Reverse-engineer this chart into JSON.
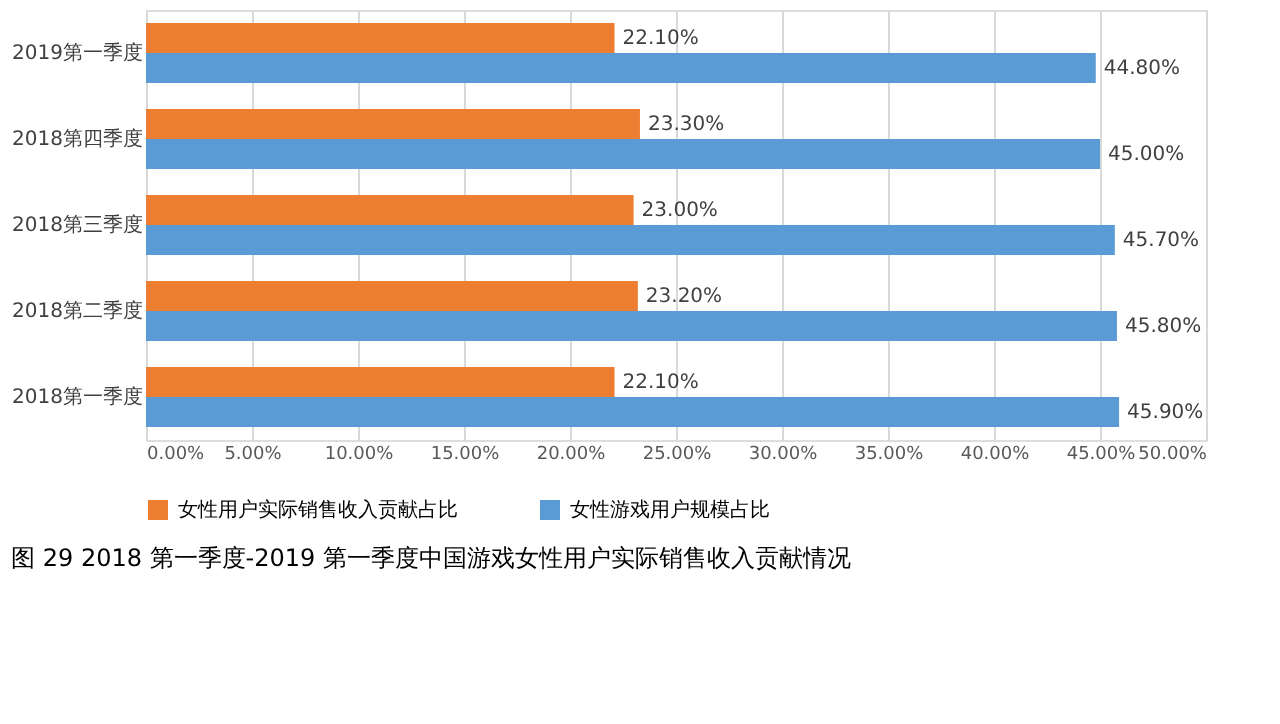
{
  "chart_data": {
    "type": "bar",
    "orientation": "horizontal",
    "categories": [
      "2019第一季度",
      "2018第四季度",
      "2018第三季度",
      "2018第二季度",
      "2018第一季度"
    ],
    "series": [
      {
        "name": "女性用户实际销售收入贡献占比",
        "color": "#ed7d31",
        "values": [
          22.1,
          23.3,
          23.0,
          23.2,
          22.1
        ],
        "value_labels": [
          "22.10%",
          "23.30%",
          "23.00%",
          "23.20%",
          "22.10%"
        ]
      },
      {
        "name": "女性游戏用户规模占比",
        "color": "#5b9bd5",
        "values": [
          44.8,
          45.0,
          45.7,
          45.8,
          45.9
        ],
        "value_labels": [
          "44.80%",
          "45.00%",
          "45.70%",
          "45.80%",
          "45.90%"
        ]
      }
    ],
    "xlim": [
      0,
      50
    ],
    "xticks": [
      {
        "value": 0,
        "label": "0.00%"
      },
      {
        "value": 5,
        "label": "5.00%"
      },
      {
        "value": 10,
        "label": "10.00%"
      },
      {
        "value": 15,
        "label": "15.00%"
      },
      {
        "value": 20,
        "label": "20.00%"
      },
      {
        "value": 25,
        "label": "25.00%"
      },
      {
        "value": 30,
        "label": "30.00%"
      },
      {
        "value": 35,
        "label": "35.00%"
      },
      {
        "value": 40,
        "label": "40.00%"
      },
      {
        "value": 45,
        "label": "45.00%"
      },
      {
        "value": 50,
        "label": "50.00%"
      }
    ],
    "grid": "x",
    "legend": "bottom",
    "annotations": [
      "图 29   2018 第一季度-2019 第一季度中国游戏女性用户实际销售收入贡献情况"
    ]
  }
}
